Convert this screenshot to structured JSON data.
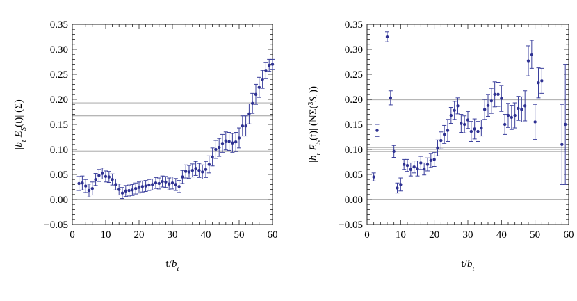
{
  "chart_data": [
    {
      "type": "scatter",
      "title": "",
      "xlabel": "t/b_t",
      "ylabel": "|b_t E_S(t)| (Σ)",
      "xlim": [
        0,
        60
      ],
      "ylim": [
        -0.05,
        0.35
      ],
      "xticks": [
        "0",
        "10",
        "20",
        "30",
        "40",
        "50",
        "60"
      ],
      "yticks": [
        "−0.05",
        "0.00",
        "0.05",
        "0.10",
        "0.15",
        "0.20",
        "0.25",
        "0.30",
        "0.35"
      ],
      "hlines": [
        0.0,
        0.097,
        0.167,
        0.193
      ],
      "grid": false,
      "series": [
        {
          "x": [
            2,
            3,
            4,
            5,
            6,
            7,
            8,
            9,
            10,
            11,
            12,
            13,
            14,
            15,
            16,
            17,
            18,
            19,
            20,
            21,
            22,
            23,
            24,
            25,
            26,
            27,
            28,
            29,
            30,
            31,
            32,
            33,
            34,
            35,
            36,
            37,
            38,
            39,
            40,
            41,
            42,
            43,
            44,
            45,
            46,
            47,
            48,
            49,
            50,
            51,
            52,
            53,
            54,
            55,
            56,
            57,
            58,
            59,
            60
          ],
          "y": [
            0.032,
            0.033,
            0.027,
            0.018,
            0.022,
            0.04,
            0.048,
            0.052,
            0.046,
            0.045,
            0.04,
            0.03,
            0.02,
            0.013,
            0.017,
            0.018,
            0.019,
            0.022,
            0.024,
            0.026,
            0.027,
            0.029,
            0.03,
            0.033,
            0.032,
            0.036,
            0.035,
            0.031,
            0.033,
            0.03,
            0.026,
            0.045,
            0.056,
            0.055,
            0.058,
            0.062,
            0.058,
            0.055,
            0.06,
            0.07,
            0.085,
            0.1,
            0.104,
            0.112,
            0.117,
            0.116,
            0.113,
            0.115,
            0.123,
            0.147,
            0.147,
            0.171,
            0.192,
            0.21,
            0.224,
            0.24,
            0.258,
            0.268,
            0.27
          ],
          "err": [
            0.014,
            0.014,
            0.013,
            0.013,
            0.013,
            0.012,
            0.012,
            0.011,
            0.011,
            0.011,
            0.011,
            0.011,
            0.011,
            0.011,
            0.011,
            0.011,
            0.011,
            0.011,
            0.011,
            0.011,
            0.011,
            0.011,
            0.011,
            0.011,
            0.011,
            0.011,
            0.011,
            0.012,
            0.012,
            0.012,
            0.012,
            0.013,
            0.013,
            0.013,
            0.013,
            0.014,
            0.014,
            0.014,
            0.016,
            0.017,
            0.018,
            0.018,
            0.018,
            0.018,
            0.018,
            0.018,
            0.019,
            0.019,
            0.02,
            0.02,
            0.02,
            0.02,
            0.02,
            0.02,
            0.02,
            0.018,
            0.016,
            0.012,
            0.01
          ]
        }
      ]
    },
    {
      "type": "scatter",
      "title": "",
      "xlabel": "t/b_t",
      "ylabel": "|b_t E_S(t)| (NΣ(³S₁))",
      "xlim": [
        0,
        60
      ],
      "ylim": [
        -0.05,
        0.35
      ],
      "xticks": [
        "0",
        "10",
        "20",
        "30",
        "40",
        "50",
        "60"
      ],
      "yticks": [
        "−0.05",
        "0.00",
        "0.05",
        "0.10",
        "0.15",
        "0.20",
        "0.25",
        "0.30",
        "0.35"
      ],
      "hlines": [
        0.0,
        0.096,
        0.1,
        0.104,
        0.199
      ],
      "grid": false,
      "series": [
        {
          "x": [
            2,
            3,
            6,
            7,
            8,
            9,
            10,
            11,
            12,
            13,
            14,
            15,
            16,
            17,
            18,
            19,
            20,
            21,
            22,
            23,
            24,
            25,
            26,
            27,
            28,
            29,
            30,
            31,
            32,
            33,
            34,
            35,
            36,
            37,
            38,
            39,
            40,
            41,
            42,
            43,
            44,
            45,
            46,
            47,
            48,
            49,
            50,
            51,
            52,
            58,
            59
          ],
          "y": [
            0.045,
            0.138,
            0.325,
            0.203,
            0.096,
            0.023,
            0.03,
            0.07,
            0.068,
            0.06,
            0.065,
            0.062,
            0.073,
            0.061,
            0.07,
            0.078,
            0.08,
            0.103,
            0.118,
            0.13,
            0.138,
            0.168,
            0.178,
            0.187,
            0.152,
            0.15,
            0.159,
            0.136,
            0.141,
            0.136,
            0.143,
            0.18,
            0.188,
            0.197,
            0.21,
            0.21,
            0.202,
            0.15,
            0.168,
            0.164,
            0.168,
            0.182,
            0.18,
            0.187,
            0.277,
            0.29,
            0.155,
            0.233,
            0.237,
            0.11,
            0.15
          ],
          "err": [
            0.008,
            0.012,
            0.01,
            0.014,
            0.012,
            0.01,
            0.013,
            0.01,
            0.012,
            0.013,
            0.012,
            0.015,
            0.013,
            0.012,
            0.013,
            0.014,
            0.014,
            0.016,
            0.017,
            0.018,
            0.022,
            0.016,
            0.018,
            0.016,
            0.018,
            0.017,
            0.017,
            0.02,
            0.02,
            0.02,
            0.016,
            0.02,
            0.022,
            0.025,
            0.025,
            0.024,
            0.026,
            0.02,
            0.024,
            0.024,
            0.025,
            0.024,
            0.025,
            0.03,
            0.03,
            0.028,
            0.035,
            0.03,
            0.025,
            0.08,
            0.12
          ]
        }
      ]
    }
  ]
}
